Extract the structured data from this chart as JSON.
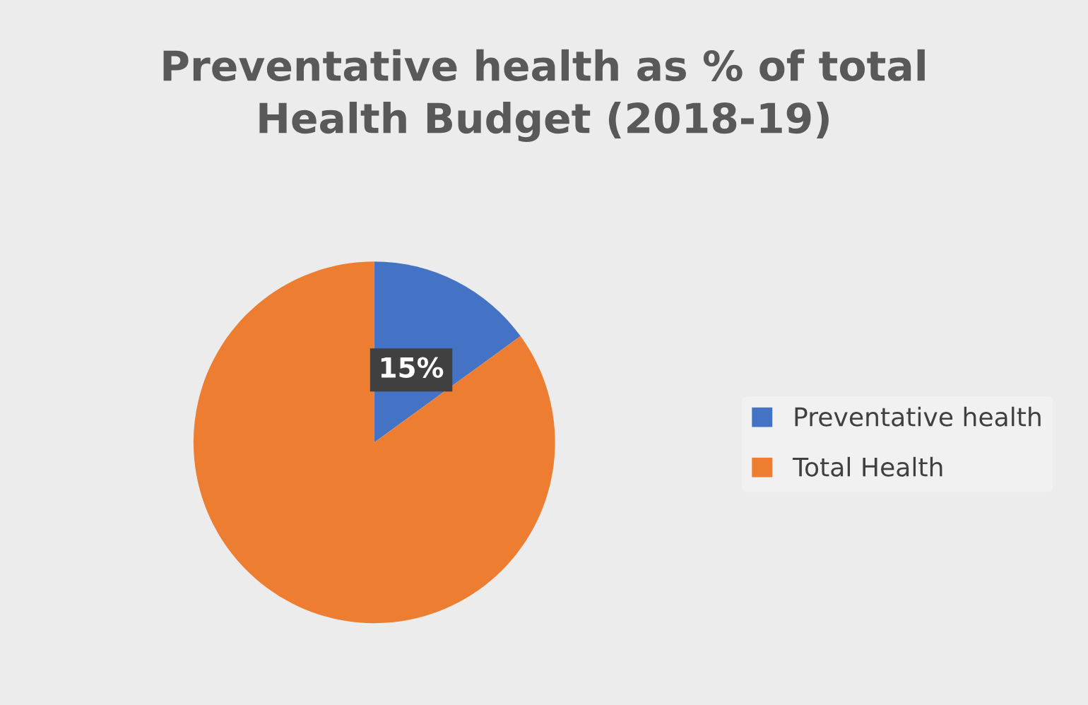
{
  "chart_data": {
    "type": "pie",
    "title": "Preventative health as % of total\nHealth Budget (2018-19)",
    "categories": [
      "Preventative health",
      "Total Health"
    ],
    "values": [
      15,
      85
    ],
    "colors": [
      "#4472c4",
      "#ed7d31"
    ],
    "value_labels": [
      "15%",
      null
    ],
    "legend": "right"
  }
}
